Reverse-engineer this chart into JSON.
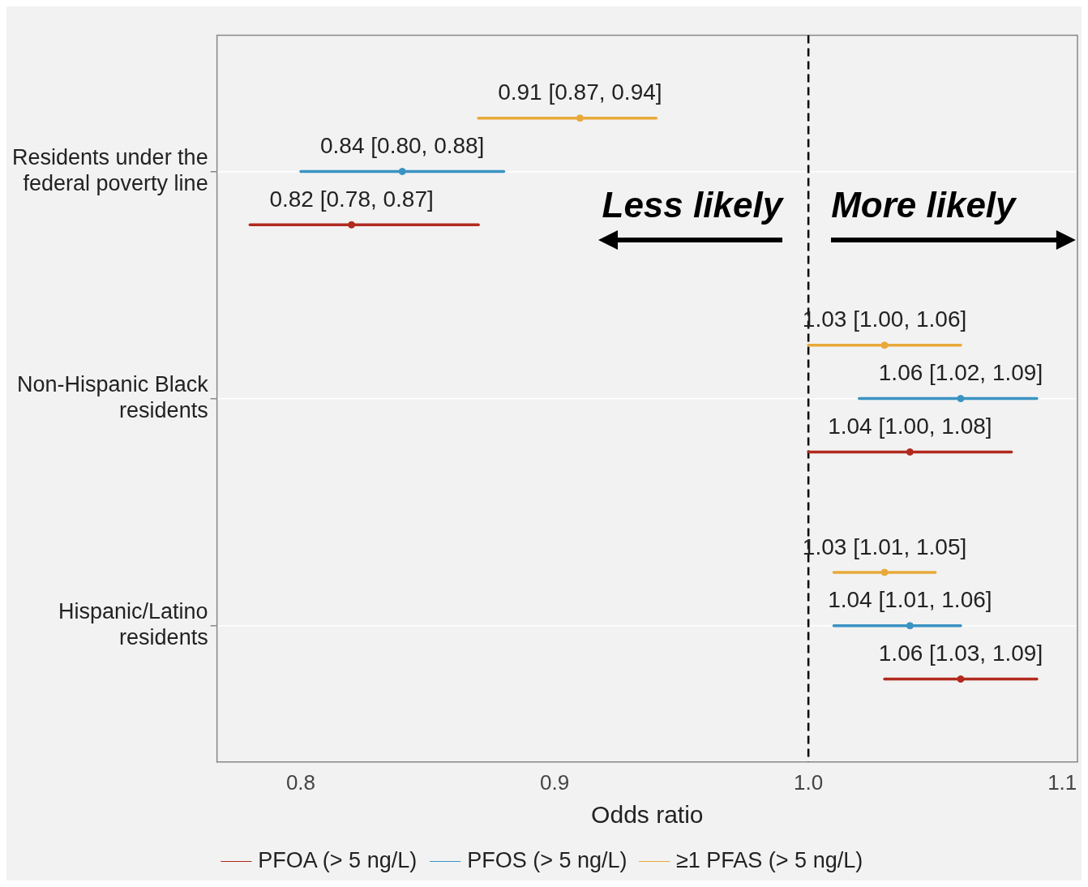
{
  "chart_data": {
    "type": "scatter",
    "orientation": "horizontal",
    "xlabel": "Odds ratio",
    "categories": [
      "Residents under the federal poverty line",
      "Non-Hispanic Black residents",
      "Hispanic/Latino residents"
    ],
    "series": [
      {
        "name": "PFOA (> 5 ng/L)",
        "color": "#b22a1e",
        "values": [
          0.82,
          1.04,
          1.06
        ],
        "errors": [
          [
            0.78,
            0.87
          ],
          [
            1.0,
            1.08
          ],
          [
            1.03,
            1.09
          ]
        ],
        "value_labels": [
          "0.82 [0.78, 0.87]",
          "1.04 [1.00, 1.08]",
          "1.06 [1.03, 1.09]"
        ]
      },
      {
        "name": "PFOS (> 5 ng/L)",
        "color": "#3a93c3",
        "values": [
          0.84,
          1.06,
          1.04
        ],
        "errors": [
          [
            0.8,
            0.88
          ],
          [
            1.02,
            1.09
          ],
          [
            1.01,
            1.06
          ]
        ],
        "value_labels": [
          "0.84 [0.80, 0.88]",
          "1.06 [1.02, 1.09]",
          "1.04 [1.01, 1.06]"
        ]
      },
      {
        "name": "≥1 PFAS (> 5 ng/L)",
        "color": "#e8a93a",
        "values": [
          0.91,
          1.03,
          1.03
        ],
        "errors": [
          [
            0.87,
            0.94
          ],
          [
            1.0,
            1.06
          ],
          [
            1.01,
            1.05
          ]
        ],
        "value_labels": [
          "0.91 [0.87, 0.94]",
          "1.03 [1.00, 1.06]",
          "1.03 [1.01, 1.05]"
        ]
      }
    ],
    "xlim": [
      0.767,
      1.106
    ],
    "xticks": [
      0.8,
      0.9,
      {
        "value": 1.0,
        "label": "1.0"
      },
      1.1
    ],
    "ref_lines": [
      {
        "axis": "x",
        "value": 1.0,
        "line_style": "dashed",
        "color": "#000000"
      }
    ],
    "annotations": [
      "Less likely",
      "More likely"
    ],
    "grid": "y",
    "legend": "bottom",
    "marker": "circle"
  }
}
